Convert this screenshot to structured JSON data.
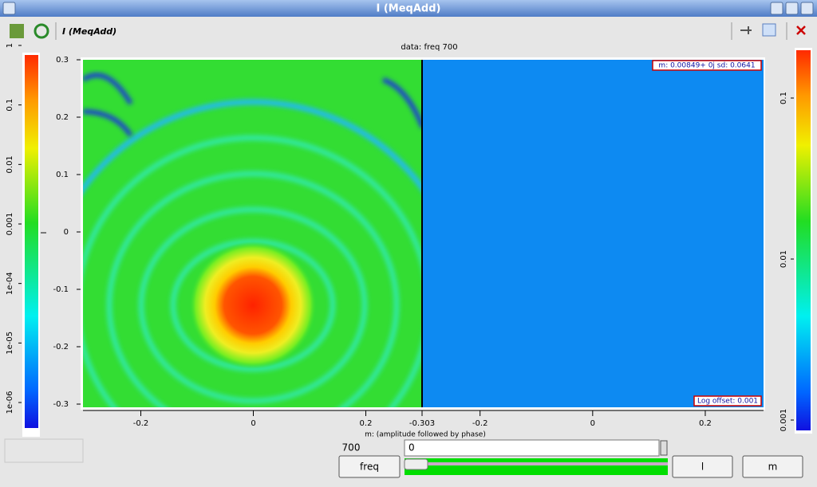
{
  "window": {
    "title": "I (MeqAdd)"
  },
  "toolbar": {
    "label": "I (MeqAdd)"
  },
  "plot": {
    "title": "data: freq 700",
    "x_label": "m: (amplitude followed by phase)",
    "colorbar_label": "I",
    "ylim": [
      -0.3,
      0.3
    ],
    "yticks": [
      0.3,
      0.2,
      0.1,
      0,
      -0.1,
      -0.2,
      -0.3
    ],
    "amplitude_xlim": [
      -0.3,
      0.3
    ],
    "amplitude_xticks": [
      -0.2,
      0,
      0.2
    ],
    "phase_xlim": [
      -0.303,
      0.3035
    ],
    "phase_xticks": [
      -0.303,
      -0.2,
      0,
      0.2
    ],
    "left_colorbar_ticks": [
      1,
      0.1,
      0.01,
      0.001,
      {
        "value": 0.0001,
        "label": "1e-04"
      },
      {
        "value": 1e-05,
        "label": "1e-05"
      },
      {
        "value": 1e-06,
        "label": "1e-06"
      }
    ],
    "right_colorbar_ticks": [
      0.1,
      0.01,
      0.001
    ],
    "annotations": [
      "m: 0.00849+ 0j sd: 0.0641",
      "Log offset: 0.001"
    ]
  },
  "controls": {
    "value": "700",
    "input": "0",
    "buttons": [
      "freq",
      "l",
      "m"
    ]
  }
}
